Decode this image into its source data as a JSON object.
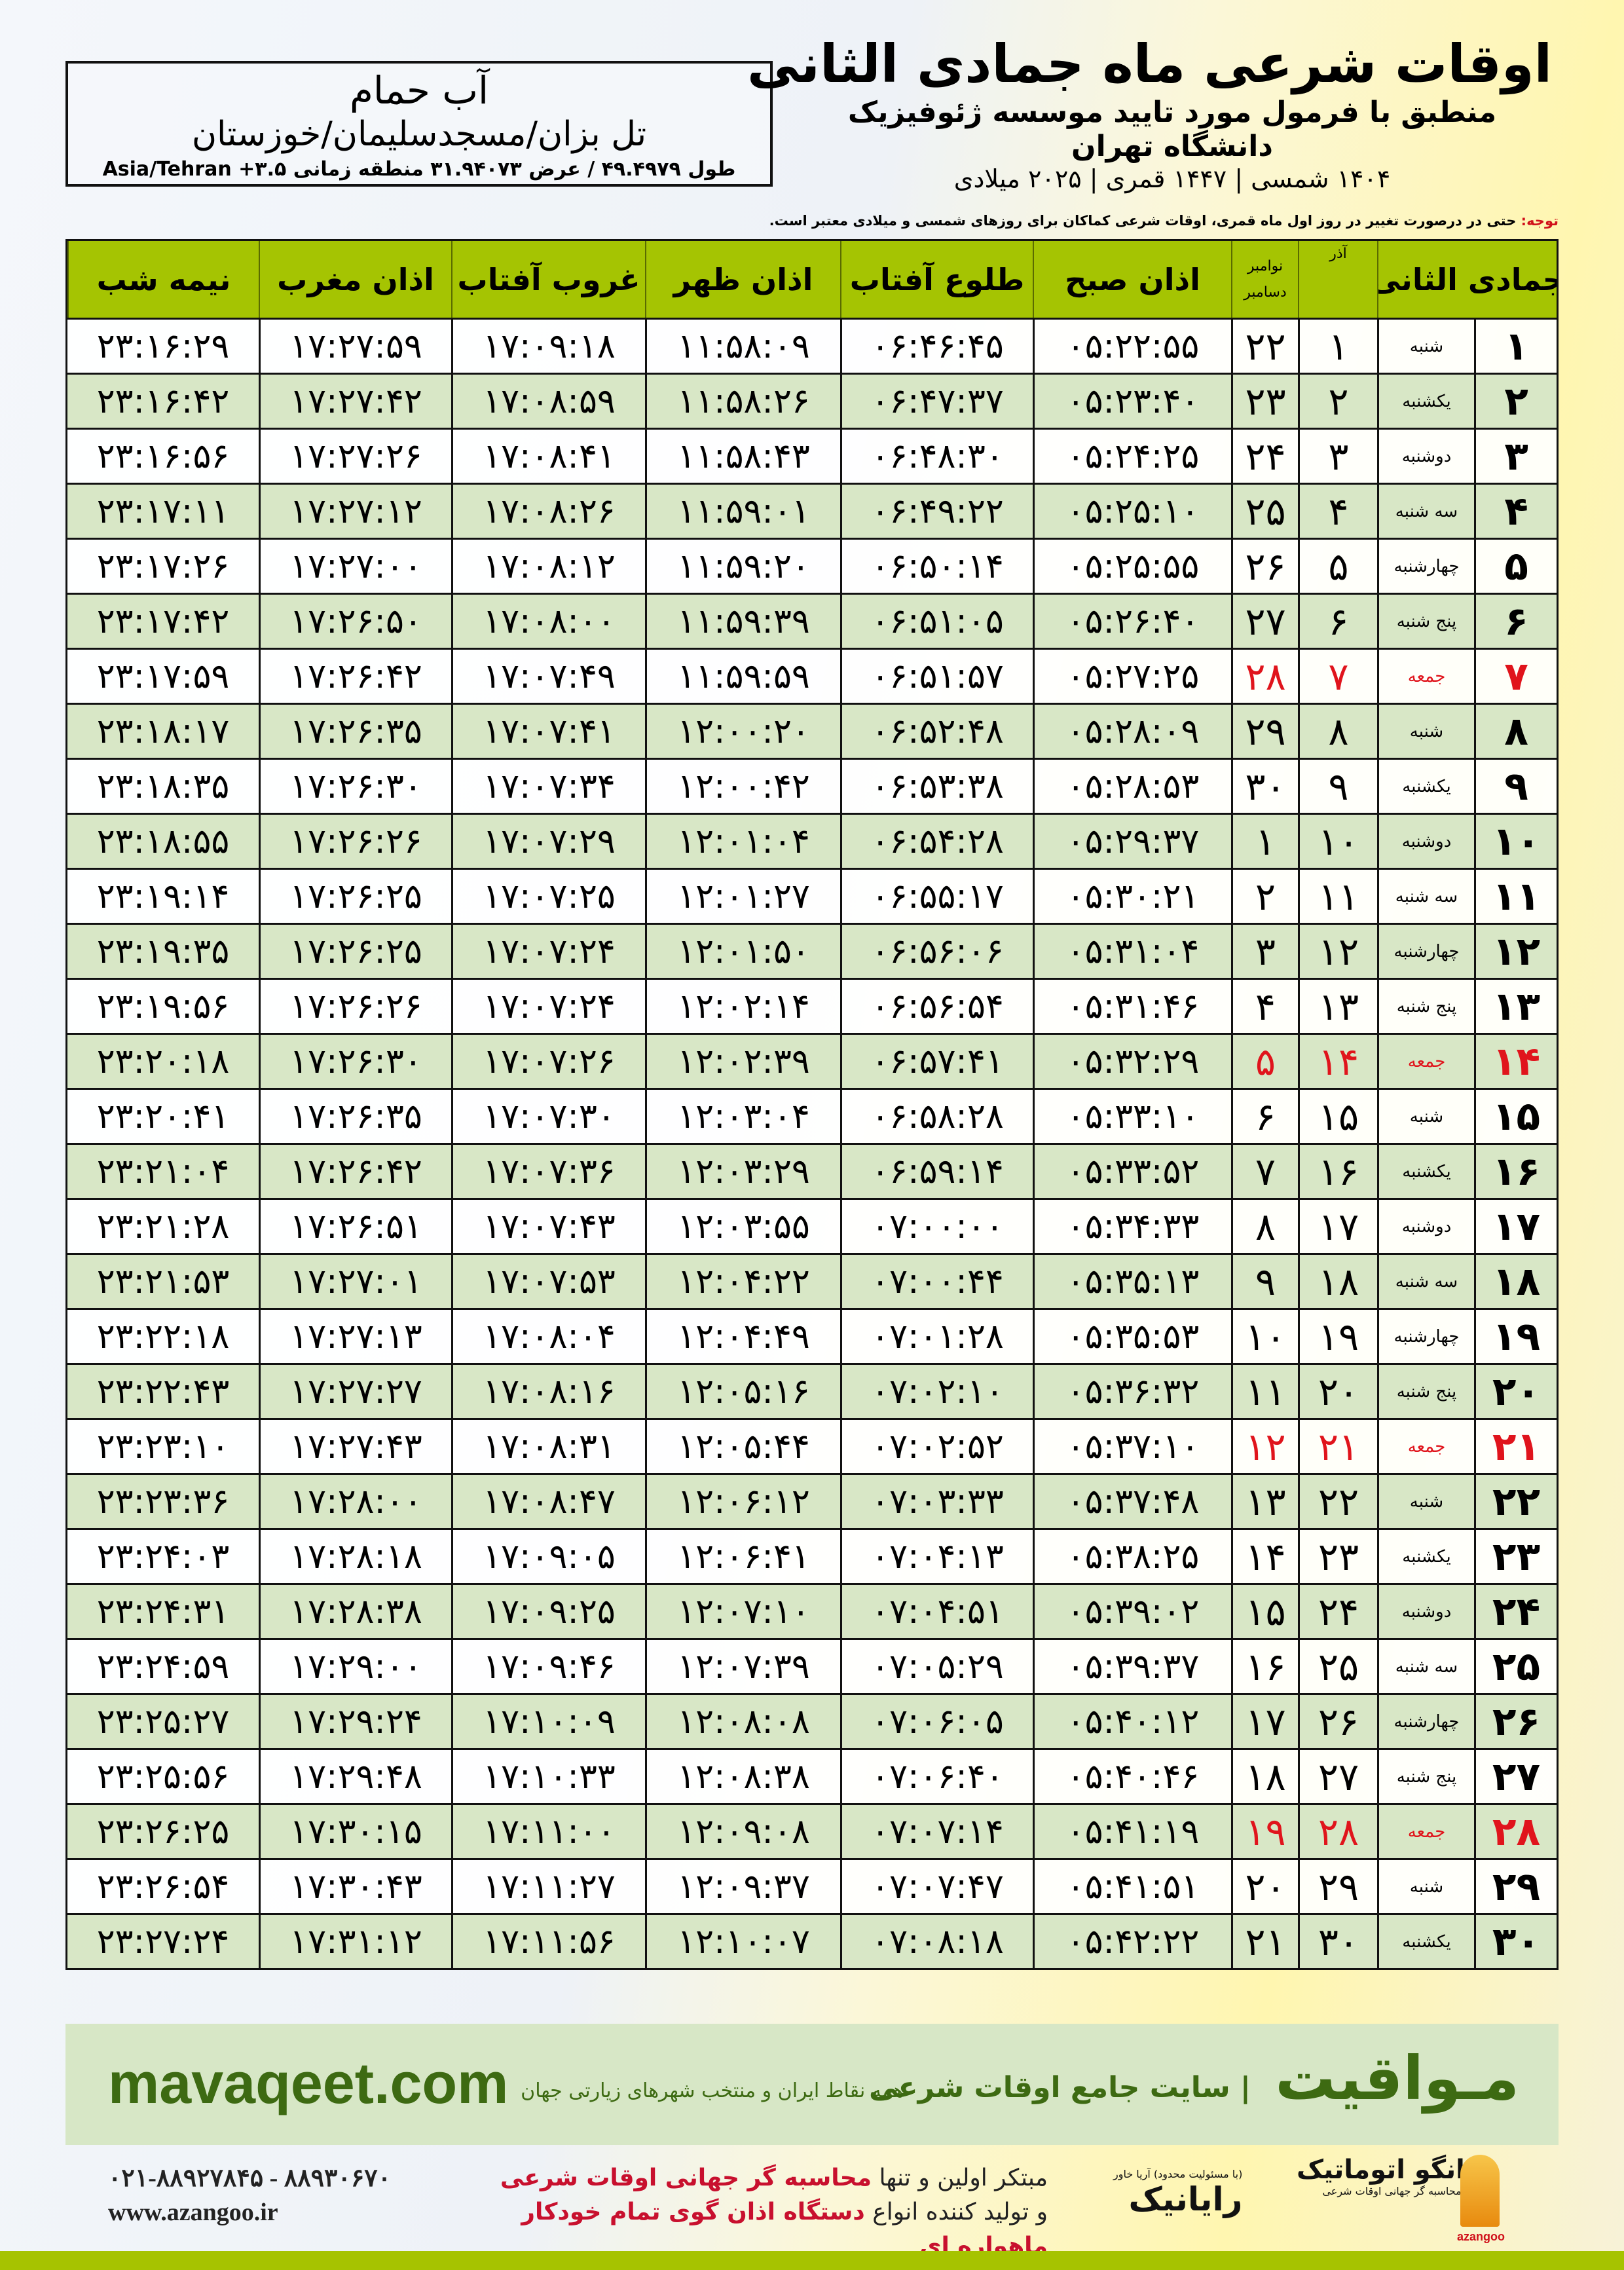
{
  "location": {
    "name": "آب حمام",
    "path": "تل بزان/مسجدسلیمان/خوزستان",
    "coords": "طول ۴۹.۴۹۷۹ / عرض ۳۱.۹۴۰۷۳ منطقه زمانی ۳.۵+ Asia/Tehran"
  },
  "title": {
    "main": "اوقات شرعی ماه جمادی الثانی",
    "sub": "منطبق با فرمول مورد تایید موسسه ژئوفیزیک دانشگاه تهران",
    "dates": "۱۴۰۴ شمسی | ۱۴۴۷ قمری | ۲۰۲۵ میلادی"
  },
  "note": {
    "label": "توجه:",
    "text": " حتی در درصورت تغییر در روز اول ماه قمری، اوقات شرعی کماکان برای روزهای شمسی و میلادی معتبر است."
  },
  "colors": {
    "header": "#a5c402",
    "alt_row": "#d8e7c6",
    "friday": "#e0141c",
    "brand": "#3d6a12",
    "bottom_bar": "#a6c300"
  },
  "table": {
    "headers": {
      "hijri": "جمادی الثانی",
      "azar": "آذر",
      "greg_top": "نوامبر",
      "greg_bottom": "دسامبر",
      "fajr": "اذان صبح",
      "sunrise": "طلوع آفتاب",
      "dhuhr": "اذان ظهر",
      "sunset": "غروب آفتاب",
      "maghrib": "اذان مغرب",
      "midnight": "نیمه شب"
    },
    "rows": [
      [
        "۱",
        "شنبه",
        "۱",
        "۲۲",
        "۰۵:۲۲:۵۵",
        "۰۶:۴۶:۴۵",
        "۱۱:۵۸:۰۹",
        "۱۷:۰۹:۱۸",
        "۱۷:۲۷:۵۹",
        "۲۳:۱۶:۲۹"
      ],
      [
        "۲",
        "یکشنبه",
        "۲",
        "۲۳",
        "۰۵:۲۳:۴۰",
        "۰۶:۴۷:۳۷",
        "۱۱:۵۸:۲۶",
        "۱۷:۰۸:۵۹",
        "۱۷:۲۷:۴۲",
        "۲۳:۱۶:۴۲"
      ],
      [
        "۳",
        "دوشنبه",
        "۳",
        "۲۴",
        "۰۵:۲۴:۲۵",
        "۰۶:۴۸:۳۰",
        "۱۱:۵۸:۴۳",
        "۱۷:۰۸:۴۱",
        "۱۷:۲۷:۲۶",
        "۲۳:۱۶:۵۶"
      ],
      [
        "۴",
        "سه شنبه",
        "۴",
        "۲۵",
        "۰۵:۲۵:۱۰",
        "۰۶:۴۹:۲۲",
        "۱۱:۵۹:۰۱",
        "۱۷:۰۸:۲۶",
        "۱۷:۲۷:۱۲",
        "۲۳:۱۷:۱۱"
      ],
      [
        "۵",
        "چهارشنبه",
        "۵",
        "۲۶",
        "۰۵:۲۵:۵۵",
        "۰۶:۵۰:۱۴",
        "۱۱:۵۹:۲۰",
        "۱۷:۰۸:۱۲",
        "۱۷:۲۷:۰۰",
        "۲۳:۱۷:۲۶"
      ],
      [
        "۶",
        "پنج شنبه",
        "۶",
        "۲۷",
        "۰۵:۲۶:۴۰",
        "۰۶:۵۱:۰۵",
        "۱۱:۵۹:۳۹",
        "۱۷:۰۸:۰۰",
        "۱۷:۲۶:۵۰",
        "۲۳:۱۷:۴۲"
      ],
      [
        "۷",
        "جمعه",
        "۷",
        "۲۸",
        "۰۵:۲۷:۲۵",
        "۰۶:۵۱:۵۷",
        "۱۱:۵۹:۵۹",
        "۱۷:۰۷:۴۹",
        "۱۷:۲۶:۴۲",
        "۲۳:۱۷:۵۹"
      ],
      [
        "۸",
        "شنبه",
        "۸",
        "۲۹",
        "۰۵:۲۸:۰۹",
        "۰۶:۵۲:۴۸",
        "۱۲:۰۰:۲۰",
        "۱۷:۰۷:۴۱",
        "۱۷:۲۶:۳۵",
        "۲۳:۱۸:۱۷"
      ],
      [
        "۹",
        "یکشنبه",
        "۹",
        "۳۰",
        "۰۵:۲۸:۵۳",
        "۰۶:۵۳:۳۸",
        "۱۲:۰۰:۴۲",
        "۱۷:۰۷:۳۴",
        "۱۷:۲۶:۳۰",
        "۲۳:۱۸:۳۵"
      ],
      [
        "۱۰",
        "دوشنبه",
        "۱۰",
        "۱",
        "۰۵:۲۹:۳۷",
        "۰۶:۵۴:۲۸",
        "۱۲:۰۱:۰۴",
        "۱۷:۰۷:۲۹",
        "۱۷:۲۶:۲۶",
        "۲۳:۱۸:۵۵"
      ],
      [
        "۱۱",
        "سه شنبه",
        "۱۱",
        "۲",
        "۰۵:۳۰:۲۱",
        "۰۶:۵۵:۱۷",
        "۱۲:۰۱:۲۷",
        "۱۷:۰۷:۲۵",
        "۱۷:۲۶:۲۵",
        "۲۳:۱۹:۱۴"
      ],
      [
        "۱۲",
        "چهارشنبه",
        "۱۲",
        "۳",
        "۰۵:۳۱:۰۴",
        "۰۶:۵۶:۰۶",
        "۱۲:۰۱:۵۰",
        "۱۷:۰۷:۲۴",
        "۱۷:۲۶:۲۵",
        "۲۳:۱۹:۳۵"
      ],
      [
        "۱۳",
        "پنج شنبه",
        "۱۳",
        "۴",
        "۰۵:۳۱:۴۶",
        "۰۶:۵۶:۵۴",
        "۱۲:۰۲:۱۴",
        "۱۷:۰۷:۲۴",
        "۱۷:۲۶:۲۶",
        "۲۳:۱۹:۵۶"
      ],
      [
        "۱۴",
        "جمعه",
        "۱۴",
        "۵",
        "۰۵:۳۲:۲۹",
        "۰۶:۵۷:۴۱",
        "۱۲:۰۲:۳۹",
        "۱۷:۰۷:۲۶",
        "۱۷:۲۶:۳۰",
        "۲۳:۲۰:۱۸"
      ],
      [
        "۱۵",
        "شنبه",
        "۱۵",
        "۶",
        "۰۵:۳۳:۱۰",
        "۰۶:۵۸:۲۸",
        "۱۲:۰۳:۰۴",
        "۱۷:۰۷:۳۰",
        "۱۷:۲۶:۳۵",
        "۲۳:۲۰:۴۱"
      ],
      [
        "۱۶",
        "یکشنبه",
        "۱۶",
        "۷",
        "۰۵:۳۳:۵۲",
        "۰۶:۵۹:۱۴",
        "۱۲:۰۳:۲۹",
        "۱۷:۰۷:۳۶",
        "۱۷:۲۶:۴۲",
        "۲۳:۲۱:۰۴"
      ],
      [
        "۱۷",
        "دوشنبه",
        "۱۷",
        "۸",
        "۰۵:۳۴:۳۳",
        "۰۷:۰۰:۰۰",
        "۱۲:۰۳:۵۵",
        "۱۷:۰۷:۴۳",
        "۱۷:۲۶:۵۱",
        "۲۳:۲۱:۲۸"
      ],
      [
        "۱۸",
        "سه شنبه",
        "۱۸",
        "۹",
        "۰۵:۳۵:۱۳",
        "۰۷:۰۰:۴۴",
        "۱۲:۰۴:۲۲",
        "۱۷:۰۷:۵۳",
        "۱۷:۲۷:۰۱",
        "۲۳:۲۱:۵۳"
      ],
      [
        "۱۹",
        "چهارشنبه",
        "۱۹",
        "۱۰",
        "۰۵:۳۵:۵۳",
        "۰۷:۰۱:۲۸",
        "۱۲:۰۴:۴۹",
        "۱۷:۰۸:۰۴",
        "۱۷:۲۷:۱۳",
        "۲۳:۲۲:۱۸"
      ],
      [
        "۲۰",
        "پنج شنبه",
        "۲۰",
        "۱۱",
        "۰۵:۳۶:۳۲",
        "۰۷:۰۲:۱۰",
        "۱۲:۰۵:۱۶",
        "۱۷:۰۸:۱۶",
        "۱۷:۲۷:۲۷",
        "۲۳:۲۲:۴۳"
      ],
      [
        "۲۱",
        "جمعه",
        "۲۱",
        "۱۲",
        "۰۵:۳۷:۱۰",
        "۰۷:۰۲:۵۲",
        "۱۲:۰۵:۴۴",
        "۱۷:۰۸:۳۱",
        "۱۷:۲۷:۴۳",
        "۲۳:۲۳:۱۰"
      ],
      [
        "۲۲",
        "شنبه",
        "۲۲",
        "۱۳",
        "۰۵:۳۷:۴۸",
        "۰۷:۰۳:۳۳",
        "۱۲:۰۶:۱۲",
        "۱۷:۰۸:۴۷",
        "۱۷:۲۸:۰۰",
        "۲۳:۲۳:۳۶"
      ],
      [
        "۲۳",
        "یکشنبه",
        "۲۳",
        "۱۴",
        "۰۵:۳۸:۲۵",
        "۰۷:۰۴:۱۳",
        "۱۲:۰۶:۴۱",
        "۱۷:۰۹:۰۵",
        "۱۷:۲۸:۱۸",
        "۲۳:۲۴:۰۳"
      ],
      [
        "۲۴",
        "دوشنبه",
        "۲۴",
        "۱۵",
        "۰۵:۳۹:۰۲",
        "۰۷:۰۴:۵۱",
        "۱۲:۰۷:۱۰",
        "۱۷:۰۹:۲۵",
        "۱۷:۲۸:۳۸",
        "۲۳:۲۴:۳۱"
      ],
      [
        "۲۵",
        "سه شنبه",
        "۲۵",
        "۱۶",
        "۰۵:۳۹:۳۷",
        "۰۷:۰۵:۲۹",
        "۱۲:۰۷:۳۹",
        "۱۷:۰۹:۴۶",
        "۱۷:۲۹:۰۰",
        "۲۳:۲۴:۵۹"
      ],
      [
        "۲۶",
        "چهارشنبه",
        "۲۶",
        "۱۷",
        "۰۵:۴۰:۱۲",
        "۰۷:۰۶:۰۵",
        "۱۲:۰۸:۰۸",
        "۱۷:۱۰:۰۹",
        "۱۷:۲۹:۲۴",
        "۲۳:۲۵:۲۷"
      ],
      [
        "۲۷",
        "پنج شنبه",
        "۲۷",
        "۱۸",
        "۰۵:۴۰:۴۶",
        "۰۷:۰۶:۴۰",
        "۱۲:۰۸:۳۸",
        "۱۷:۱۰:۳۳",
        "۱۷:۲۹:۴۸",
        "۲۳:۲۵:۵۶"
      ],
      [
        "۲۸",
        "جمعه",
        "۲۸",
        "۱۹",
        "۰۵:۴۱:۱۹",
        "۰۷:۰۷:۱۴",
        "۱۲:۰۹:۰۸",
        "۱۷:۱۱:۰۰",
        "۱۷:۳۰:۱۵",
        "۲۳:۲۶:۲۵"
      ],
      [
        "۲۹",
        "شنبه",
        "۲۹",
        "۲۰",
        "۰۵:۴۱:۵۱",
        "۰۷:۰۷:۴۷",
        "۱۲:۰۹:۳۷",
        "۱۷:۱۱:۲۷",
        "۱۷:۳۰:۴۳",
        "۲۳:۲۶:۵۴"
      ],
      [
        "۳۰",
        "یکشنبه",
        "۳۰",
        "۲۱",
        "۰۵:۴۲:۲۲",
        "۰۷:۰۸:۱۸",
        "۱۲:۱۰:۰۷",
        "۱۷:۱۱:۵۶",
        "۱۷:۳۱:۱۲",
        "۲۳:۲۷:۲۴"
      ]
    ]
  },
  "banner": {
    "brand": "مـواقیت",
    "sep": "|",
    "tagline": "سایت جامع اوقات شرعی",
    "sub_tagline": "همه نقاط ایران و منتخب شهرهای زیارتی جهان",
    "site": "mavaqeet.com"
  },
  "footer": {
    "phone": "۰۲۱-۸۸۹۲۷۸۴۵ - ۸۸۹۳۰۶۷۰",
    "web": "www.azangoo.ir",
    "ad_line1_a": "مبتکر اولین و تنها ",
    "ad_line1_b": "محاسبه گر جهانی اوقات شرعی",
    "ad_line2_a": "و تولید کننده انواع ",
    "ad_line2_b": "دستگاه اذان گوی تمام خودکار ماهواره ای",
    "rayanik": "رایانیک",
    "rayanik_small": "(با مسئولیت محدود) آریا خاور",
    "azangoo": "اذانگو اتوماتیک",
    "azangoo_sub": "محاسبه گر جهانی اوقات شرعی",
    "azangoo_latin": "azangoo"
  }
}
